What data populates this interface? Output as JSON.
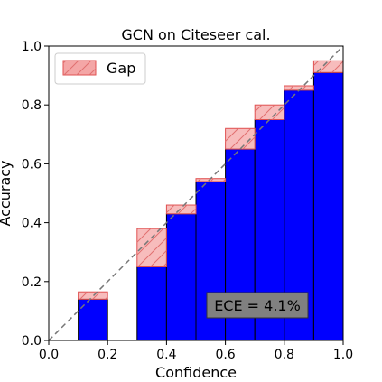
{
  "chart_data": {
    "type": "bar",
    "title": "GCN on Citeseer cal.",
    "xlabel": "Confidence",
    "ylabel": "Accuracy",
    "xlim": [
      0.0,
      1.0
    ],
    "ylim": [
      0.0,
      1.0
    ],
    "xticks": [
      "0.0",
      "0.2",
      "0.4",
      "0.6",
      "0.8",
      "1.0"
    ],
    "yticks": [
      "0.0",
      "0.2",
      "0.4",
      "0.6",
      "0.8",
      "1.0"
    ],
    "grid": false,
    "legend": {
      "position": "top-left",
      "entries": [
        "Gap"
      ]
    },
    "bins": [
      {
        "x0": 0.1,
        "x1": 0.2,
        "accuracy": 0.14,
        "confidence": 0.165
      },
      {
        "x0": 0.3,
        "x1": 0.4,
        "accuracy": 0.25,
        "confidence": 0.38
      },
      {
        "x0": 0.4,
        "x1": 0.5,
        "accuracy": 0.43,
        "confidence": 0.46
      },
      {
        "x0": 0.5,
        "x1": 0.6,
        "accuracy": 0.54,
        "confidence": 0.55
      },
      {
        "x0": 0.6,
        "x1": 0.7,
        "accuracy": 0.65,
        "confidence": 0.72
      },
      {
        "x0": 0.7,
        "x1": 0.8,
        "accuracy": 0.75,
        "confidence": 0.8
      },
      {
        "x0": 0.8,
        "x1": 0.9,
        "accuracy": 0.85,
        "confidence": 0.865
      },
      {
        "x0": 0.9,
        "x1": 1.0,
        "accuracy": 0.91,
        "confidence": 0.95
      }
    ],
    "annotation": "ECE = 4.1%",
    "colors": {
      "accuracy_bar": "#0000ff",
      "gap_fill": "#f4a6a6",
      "gap_edge": "#e05050",
      "diagonal": "#777777",
      "annotation_box": "#808080"
    }
  }
}
